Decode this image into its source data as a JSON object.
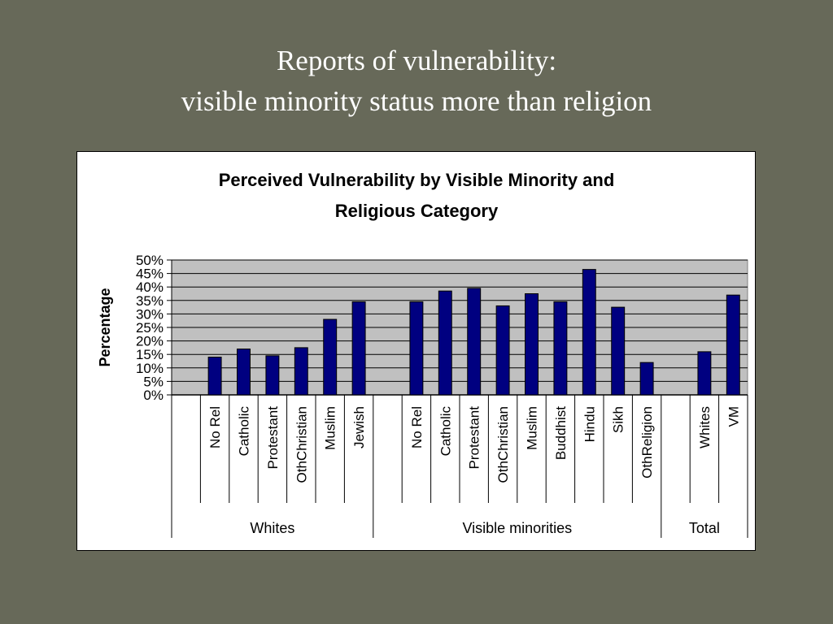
{
  "slide": {
    "title_line1": "Reports of vulnerability:",
    "title_line2": "visible minority status more than religion"
  },
  "colors": {
    "background": "#676959",
    "plot_area": "#c0c0c0",
    "bar": "#000080",
    "title_text": "#ffffff"
  },
  "chart_data": {
    "type": "bar",
    "title_line1": "Perceived Vulnerability by Visible Minority and",
    "title_line2": "Religious Category",
    "xlabel": "",
    "ylabel": "Percentage",
    "ylim": [
      0,
      0.5
    ],
    "yticks": [
      "0%",
      "5%",
      "10%",
      "15%",
      "20%",
      "25%",
      "30%",
      "35%",
      "40%",
      "45%",
      "50%"
    ],
    "grid": true,
    "legend": "none",
    "groups": [
      {
        "name": "Whites",
        "categories": [
          "No Rel",
          "Catholic",
          "Protestant",
          "OthChristian",
          "Muslim",
          "Jewish"
        ],
        "values": [
          0.14,
          0.17,
          0.145,
          0.175,
          0.28,
          0.345
        ]
      },
      {
        "name": "Visible minorities",
        "categories": [
          "No Rel",
          "Catholic",
          "Protestant",
          "OthChristian",
          "Muslim",
          "Buddhist",
          "Hindu",
          "Sikh",
          "OthReligion"
        ],
        "values": [
          0.345,
          0.385,
          0.395,
          0.33,
          0.375,
          0.345,
          0.465,
          0.325,
          0.12
        ]
      },
      {
        "name": "Total",
        "categories": [
          "Whites",
          "VM"
        ],
        "values": [
          0.16,
          0.37
        ]
      }
    ]
  }
}
